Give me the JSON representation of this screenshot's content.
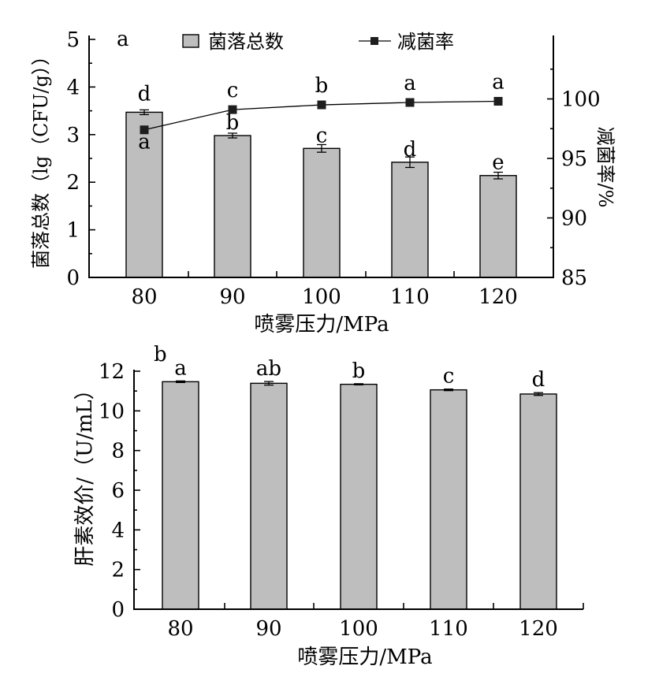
{
  "chart_data": [
    {
      "type": "bar",
      "panel_label": "a",
      "categories": [
        "80",
        "90",
        "100",
        "110",
        "120"
      ],
      "xlabel": "喷雾压力/MPa",
      "ylabel": "菌落总数（lg（CFU/g））",
      "ylim": [
        0,
        5
      ],
      "yticks": [
        "0",
        "1",
        "2",
        "3",
        "4",
        "5"
      ],
      "y2label": "减菌率/%",
      "y2lim": [
        85,
        105
      ],
      "y2ticks": [
        "85",
        "90",
        "95",
        "100"
      ],
      "legend": {
        "placement": "top",
        "items": [
          "菌落总数",
          "减菌率"
        ]
      },
      "series": [
        {
          "name": "菌落总数",
          "type": "bar",
          "axis": "left",
          "values": [
            3.47,
            2.98,
            2.71,
            2.42,
            2.14
          ],
          "errors": [
            0.05,
            0.05,
            0.08,
            0.11,
            0.07
          ],
          "labels": [
            "a",
            "b",
            "c",
            "d",
            "e"
          ]
        },
        {
          "name": "减菌率",
          "type": "line",
          "axis": "right",
          "values": [
            97.4,
            99.1,
            99.5,
            99.7,
            99.8
          ],
          "labels": [
            "d",
            "c",
            "b",
            "a",
            "a"
          ]
        }
      ]
    },
    {
      "type": "bar",
      "panel_label": "b",
      "categories": [
        "80",
        "90",
        "100",
        "110",
        "120"
      ],
      "xlabel": "喷雾压力/MPa",
      "ylabel": "肝素效价/（U/mL）",
      "ylim": [
        0,
        12
      ],
      "yticks": [
        "0",
        "2",
        "4",
        "6",
        "8",
        "10",
        "12"
      ],
      "series": [
        {
          "name": "肝素效价",
          "values": [
            11.47,
            11.39,
            11.34,
            11.06,
            10.85
          ],
          "errors": [
            0.04,
            0.09,
            0.03,
            0.04,
            0.07
          ],
          "labels": [
            "a",
            "ab",
            "b",
            "c",
            "d"
          ]
        }
      ]
    }
  ]
}
